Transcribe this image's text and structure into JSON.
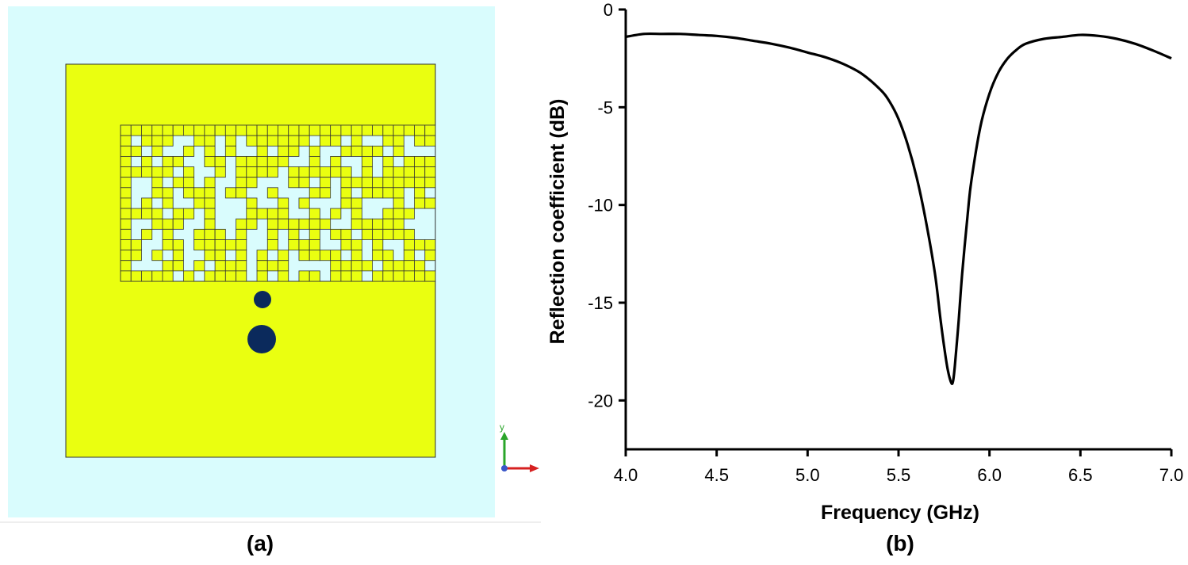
{
  "panel_a": {
    "caption": "(a)",
    "colors": {
      "substrate": "#d9fcfd",
      "patch": "#eaff10",
      "via": "#0b2a5c",
      "edge": "#333333"
    },
    "grid": {
      "rows": [
        "111111111111111111111111111111",
        "101110011010111111011010011011",
        "110100101010010110100111101000",
        "101011001101111100101001010111",
        "111110100101111011111101011111",
        "100101101001100011010111111111",
        "100110111011001000110101111010",
        "101010011000100101000110001011",
        "111101101000111100101010011100",
        "100111001001101111110011111000",
        "101010011101001010101101111100",
        "110011011111001011100110100111",
        "110101001101010101111010110101",
        "100011010111011100001111011110",
        "111110101111010101101110111111"
      ]
    },
    "axes_icon": {
      "y_label": "y"
    }
  },
  "panel_b": {
    "caption": "(b)"
  },
  "chart_data": {
    "type": "line",
    "title": "",
    "xlabel": "Frequency (GHz)",
    "ylabel": "Reflection coefficient (dB)",
    "xlim": [
      4.0,
      7.0
    ],
    "ylim": [
      -22.5,
      0
    ],
    "xticks": [
      "4.0",
      "4.5",
      "5.0",
      "5.5",
      "6.0",
      "6.5",
      "7.0"
    ],
    "yticks": [
      "0",
      "-5",
      "-10",
      "-15",
      "-20"
    ],
    "grid": false,
    "legend": "none",
    "line_color": "#000000",
    "series": [
      {
        "x": [
          4.0,
          4.1,
          4.2,
          4.3,
          4.4,
          4.5,
          4.6,
          4.7,
          4.8,
          4.9,
          5.0,
          5.1,
          5.2,
          5.3,
          5.4,
          5.45,
          5.5,
          5.55,
          5.6,
          5.65,
          5.7,
          5.73,
          5.75,
          5.77,
          5.79,
          5.8,
          5.81,
          5.83,
          5.85,
          5.88,
          5.9,
          5.95,
          6.0,
          6.05,
          6.1,
          6.15,
          6.2,
          6.3,
          6.4,
          6.5,
          6.6,
          6.7,
          6.8,
          6.9,
          7.0
        ],
        "y": [
          -1.4,
          -1.25,
          -1.25,
          -1.25,
          -1.3,
          -1.35,
          -1.45,
          -1.6,
          -1.75,
          -1.95,
          -2.2,
          -2.45,
          -2.8,
          -3.3,
          -4.1,
          -4.7,
          -5.6,
          -6.9,
          -8.6,
          -10.8,
          -13.5,
          -15.8,
          -17.2,
          -18.4,
          -19.1,
          -19.0,
          -18.2,
          -16.0,
          -13.5,
          -10.5,
          -8.8,
          -6.0,
          -4.3,
          -3.2,
          -2.5,
          -2.05,
          -1.75,
          -1.5,
          -1.4,
          -1.3,
          -1.35,
          -1.5,
          -1.75,
          -2.1,
          -2.5
        ]
      }
    ]
  }
}
